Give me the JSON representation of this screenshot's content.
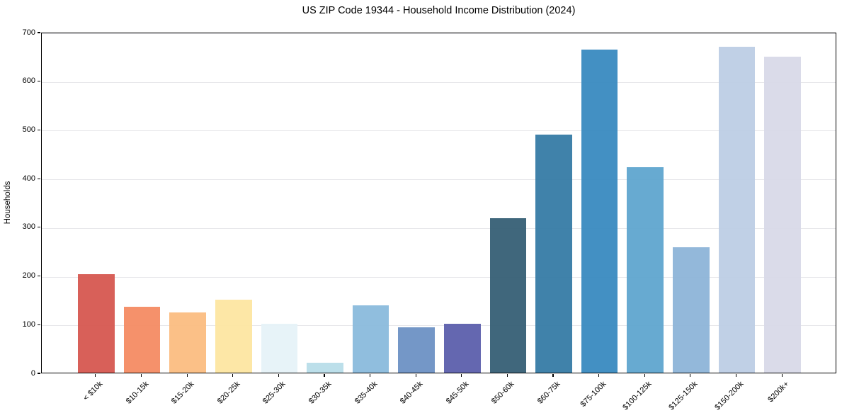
{
  "chart_data": {
    "type": "bar",
    "title": "US ZIP Code 19344 - Household Income Distribution (2024)",
    "xlabel": "",
    "ylabel": "Households",
    "categories": [
      "< $10k",
      "$10-15k",
      "$15-20k",
      "$20-25k",
      "$25-30k",
      "$30-35k",
      "$35-40k",
      "$40-45k",
      "$45-50k",
      "$50-60k",
      "$60-75k",
      "$75-100k",
      "$100-125k",
      "$125-150k",
      "$150-200k",
      "$200k+"
    ],
    "values": [
      202,
      136,
      124,
      150,
      101,
      20,
      138,
      93,
      101,
      318,
      489,
      664,
      422,
      258,
      670,
      649
    ],
    "bar_colors": [
      "#d6564f",
      "#f48a62",
      "#fbbc80",
      "#fde5a0",
      "#e5f2f8",
      "#b8dde9",
      "#89badc",
      "#6b91c4",
      "#5a5dab",
      "#345e74",
      "#347aa5",
      "#3789bf",
      "#5ea5ce",
      "#8cb4d8",
      "#bccde4",
      "#d8d9e8"
    ],
    "ylim": [
      0,
      700
    ],
    "yticks": [
      0,
      100,
      200,
      300,
      400,
      500,
      600,
      700
    ],
    "grid": "horizontal",
    "legend": "none",
    "x_tick_rotation_deg": 45
  }
}
